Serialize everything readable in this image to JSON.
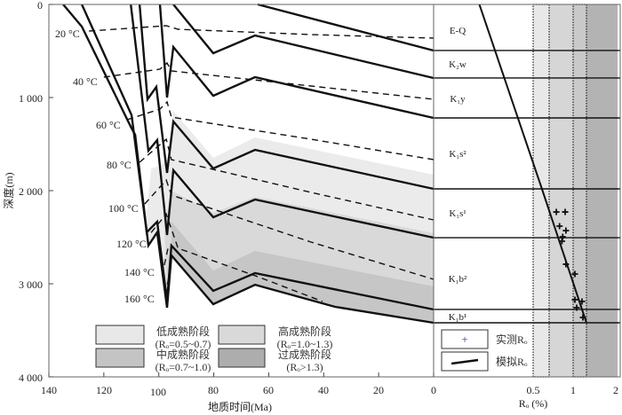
{
  "chart_data": {
    "type": "line",
    "title": "",
    "burial_history": {
      "xlabel": "地质时间(Ma)",
      "ylabel": "深度(m)",
      "xlim": [
        140,
        0
      ],
      "ylim": [
        0,
        4000
      ],
      "x_ticks": [
        "140",
        "120",
        "100",
        "80",
        "60",
        "40",
        "20",
        "0"
      ],
      "y_ticks": [
        "0",
        "1 000",
        "2 000",
        "3 000",
        "4 000"
      ],
      "formation_lines": [
        {
          "name": "E-Q",
          "points": [
            [
              64,
              0
            ],
            [
              0,
              495
            ]
          ]
        },
        {
          "name": "K2w",
          "points": [
            [
              94.7,
              0
            ],
            [
              80.2,
              524
            ],
            [
              65,
              333
            ],
            [
              0,
              790
            ]
          ]
        },
        {
          "name": "K1y",
          "points": [
            [
              99.6,
              0
            ],
            [
              97,
              1000
            ],
            [
              94.7,
              457
            ],
            [
              80.2,
              981
            ],
            [
              65,
              781
            ],
            [
              0,
              1219
            ]
          ]
        },
        {
          "name": "K1s2",
          "points": [
            [
              107,
              0
            ],
            [
              104.1,
              1019
            ],
            [
              100.9,
              886
            ],
            [
              97,
              1810
            ],
            [
              94.7,
              1257
            ],
            [
              80.2,
              1762
            ],
            [
              65,
              1562
            ],
            [
              0,
              1981
            ]
          ]
        },
        {
          "name": "K1s1",
          "points": [
            [
              110.2,
              0
            ],
            [
              103.8,
              1571
            ],
            [
              100.6,
              1457
            ],
            [
              97,
              2476
            ],
            [
              94.7,
              1781
            ],
            [
              80.2,
              2286
            ],
            [
              65,
              2095
            ],
            [
              0,
              2505
            ]
          ]
        },
        {
          "name": "K1b2",
          "points": [
            [
              128,
              0
            ],
            [
              109.9,
              1190
            ],
            [
              104.4,
              2448
            ],
            [
              100.6,
              2333
            ],
            [
              97,
              3190
            ],
            [
              95.4,
              2590
            ],
            [
              80.2,
              3076
            ],
            [
              65,
              2886
            ],
            [
              0,
              3276
            ]
          ]
        },
        {
          "name": "K1b1",
          "points": [
            [
              134.8,
              0
            ],
            [
              128,
              238
            ],
            [
              110.2,
              1314
            ],
            [
              108.6,
              1400
            ],
            [
              103.8,
              2590
            ],
            [
              100.6,
              2448
            ],
            [
              97,
              3257
            ],
            [
              95.4,
              2695
            ],
            [
              80.2,
              3219
            ],
            [
              65,
              3010
            ],
            [
              35.9,
              3248
            ],
            [
              0,
              3419
            ]
          ]
        }
      ],
      "isotherms": [
        {
          "label": "20 °C",
          "points": [
            [
              125.4,
              286
            ],
            [
              97.3,
              229
            ],
            [
              93,
              267
            ],
            [
              44.6,
              324
            ],
            [
              0,
              362
            ]
          ]
        },
        {
          "label": "40 °C",
          "points": [
            [
              120,
              781
            ],
            [
              99.6,
              695
            ],
            [
              97,
              629
            ],
            [
              95.4,
              714
            ],
            [
              44.6,
              876
            ],
            [
              0,
              1019
            ]
          ]
        },
        {
          "label": "60 °C",
          "points": [
            [
              111.5,
              1238
            ],
            [
              99.6,
              1124
            ],
            [
              97,
              1048
            ],
            [
              95.4,
              1210
            ],
            [
              44.6,
              1448
            ],
            [
              0,
              1667
            ]
          ]
        },
        {
          "label": "80 °C",
          "points": [
            [
              107,
              1695
            ],
            [
              97.3,
              1448
            ],
            [
              95.4,
              1667
            ],
            [
              44.6,
              2019
            ],
            [
              0,
              2314
            ]
          ]
        },
        {
          "label": "100 °C",
          "points": [
            [
              105.1,
              2143
            ],
            [
              97.3,
              1886
            ],
            [
              95.4,
              2048
            ],
            [
              44.6,
              2552
            ],
            [
              0,
              2952
            ]
          ]
        },
        {
          "label": "120 °C",
          "points": [
            [
              102.8,
              2450
            ],
            [
              97.3,
              2250
            ],
            [
              93,
              2619
            ],
            [
              64,
              2924
            ],
            [
              40.4,
              3190
            ]
          ]
        },
        {
          "label": "140 °C",
          "points": [
            [
              98,
              2800
            ],
            [
              96.5,
              2600
            ]
          ]
        },
        {
          "label": "160 °C",
          "points": [
            [
              97.6,
              3120
            ],
            [
              96.5,
              2950
            ]
          ]
        }
      ],
      "maturity_zones": [
        {
          "name": "低成熟阶段",
          "color": "#ebebeb",
          "top": [
            [
              104.4,
              2238
            ],
            [
              102.8,
              1762
            ],
            [
              99.6,
              1733
            ],
            [
              97,
              1667
            ],
            [
              94.7,
              1143
            ],
            [
              80.2,
              1648
            ],
            [
              65,
              1429
            ],
            [
              0,
              1829
            ]
          ]
        },
        {
          "name": "中成熟阶段",
          "color": "#d9d9d9",
          "top": [
            [
              98,
              2381
            ],
            [
              95.4,
              2000
            ],
            [
              80.2,
              2238
            ],
            [
              65,
              2067
            ],
            [
              0,
              2457
            ]
          ]
        },
        {
          "name": "高成熟阶段",
          "color": "#c6c6c6",
          "top": [
            [
              95.4,
              2333
            ],
            [
              80.2,
              2857
            ],
            [
              65,
              2648
            ],
            [
              0,
              3029
            ]
          ]
        }
      ],
      "legend": [
        {
          "name": "低成熟阶段",
          "range": "(Rₒ=0.5~0.7)",
          "color": "#e8e8e8"
        },
        {
          "name": "高成熟阶段",
          "range": "(Rₒ=1.0~1.3)",
          "color": "#d9d9d9"
        },
        {
          "name": "中成熟阶段",
          "range": "(Rₒ=0.7~1.0)",
          "color": "#c4c4c4"
        },
        {
          "name": "过成熟阶段",
          "range": "(Rₒ>1.3)",
          "color": "#adadad"
        }
      ]
    },
    "ro_profile": {
      "xlabel": "Rₒ (%)",
      "x_ticks": [
        "0",
        "0.5",
        "1",
        "2"
      ],
      "xlim": [
        0,
        2
      ],
      "ylim": [
        0,
        4000
      ],
      "formations": [
        {
          "label": "E-Q",
          "base_depth": 495
        },
        {
          "label": "K₂w",
          "base_depth": 790
        },
        {
          "label": "K₁y",
          "base_depth": 1219
        },
        {
          "label": "K₁s²",
          "base_depth": 1981
        },
        {
          "label": "K₁s¹",
          "base_depth": 2505
        },
        {
          "label": "K₁b²",
          "base_depth": 3276
        },
        {
          "label": "K₁b¹",
          "base_depth": 3419
        }
      ],
      "bands": [
        {
          "range": [
            0.5,
            0.7
          ],
          "color": "#e8e8e8"
        },
        {
          "range": [
            0.7,
            1.0
          ],
          "color": "#d6d6d6"
        },
        {
          "range": [
            1.0,
            1.3
          ],
          "color": "#c9c9c9"
        },
        {
          "range": [
            1.3,
            2.0
          ],
          "color": "#b3b3b3"
        }
      ],
      "simulated": [
        [
          0.23,
          0
        ],
        [
          0.61,
          1981
        ],
        [
          1.3,
          3419
        ]
      ],
      "measured": [
        [
          0.79,
          2229
        ],
        [
          0.9,
          2229
        ],
        [
          0.83,
          2381
        ],
        [
          0.91,
          2429
        ],
        [
          0.87,
          2495
        ],
        [
          0.86,
          2543
        ],
        [
          0.91,
          2790
        ],
        [
          1.04,
          2895
        ],
        [
          1.04,
          3171
        ],
        [
          1.2,
          3190
        ],
        [
          1.08,
          3257
        ],
        [
          1.22,
          3362
        ]
      ],
      "legend": {
        "measured": "实测Rₒ",
        "simulated": "模拟Rₒ",
        "measured_color": "#4b2a7a"
      }
    }
  }
}
